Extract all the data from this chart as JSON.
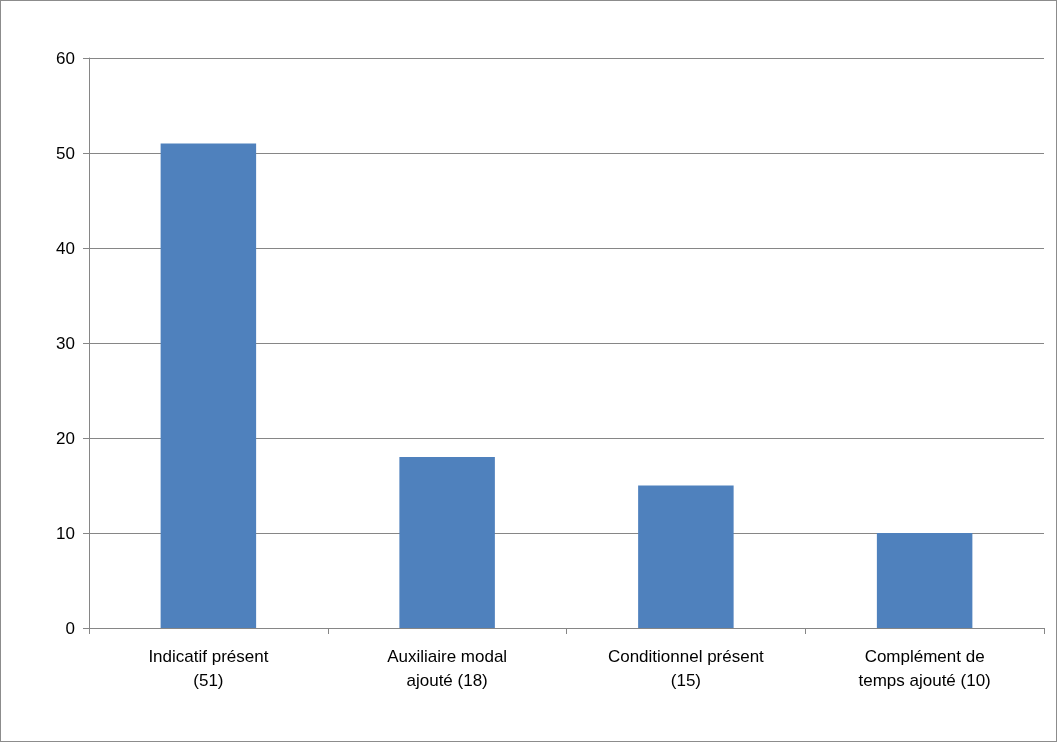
{
  "chart_data": {
    "type": "bar",
    "categories": [
      "Indicatif présent\n(51)",
      "Auxiliaire modal\najouté (18)",
      "Conditionnel présent\n(15)",
      "Complément de\ntemps ajouté (10)"
    ],
    "values": [
      51,
      18,
      15,
      10
    ],
    "color": "#4f81bd",
    "ylim": [
      0,
      60
    ],
    "yticks": [
      0,
      10,
      20,
      30,
      40,
      50,
      60
    ],
    "grid": "y"
  }
}
